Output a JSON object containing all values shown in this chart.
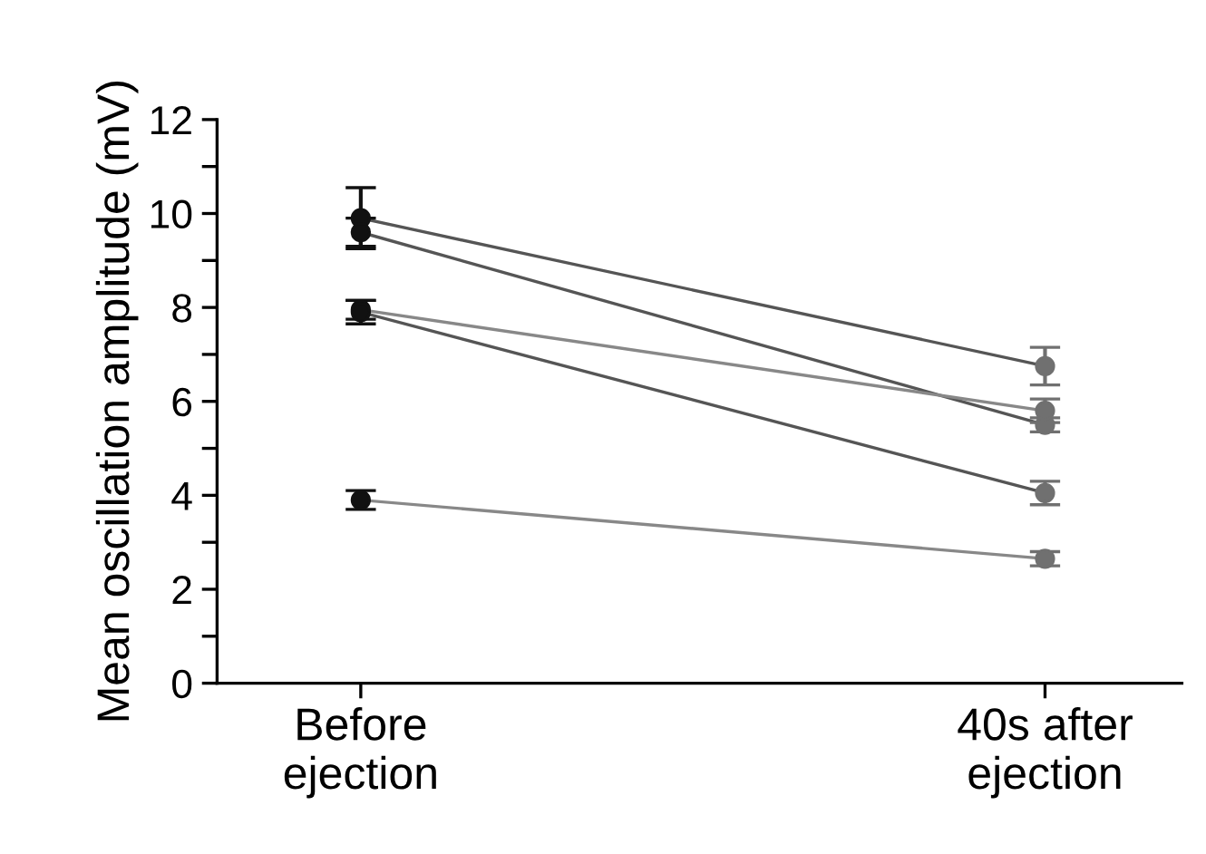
{
  "chart_data": {
    "type": "line",
    "ylabel": "Mean oscillation amplitude (mV)",
    "categories": [
      "Before\nejection",
      "40s after\nejection"
    ],
    "series": [
      {
        "color": "#555555",
        "colors": [
          "#111111",
          "#707070"
        ],
        "values": [
          9.9,
          6.75
        ],
        "errors": [
          0.65,
          0.4
        ]
      },
      {
        "color": "#555555",
        "colors": [
          "#111111",
          "#707070"
        ],
        "values": [
          9.6,
          5.5
        ],
        "errors": [
          0.3,
          0.15
        ]
      },
      {
        "color": "#888888",
        "colors": [
          "#111111",
          "#707070"
        ],
        "values": [
          7.95,
          5.8
        ],
        "errors": [
          0.2,
          0.25
        ]
      },
      {
        "color": "#555555",
        "colors": [
          "#111111",
          "#707070"
        ],
        "values": [
          7.9,
          4.05
        ],
        "errors": [
          0.25,
          0.25
        ]
      },
      {
        "color": "#888888",
        "colors": [
          "#111111",
          "#707070"
        ],
        "values": [
          3.9,
          2.65
        ],
        "errors": [
          0.2,
          0.15
        ]
      }
    ],
    "ylim": [
      0,
      12
    ],
    "yticks": [
      0,
      {
        "value": 1,
        "label": null
      },
      2,
      {
        "value": 3,
        "label": null
      },
      4,
      {
        "value": 5,
        "label": null
      },
      6,
      {
        "value": 7,
        "label": null
      },
      8,
      {
        "value": 9,
        "label": null
      },
      10,
      {
        "value": 11,
        "label": null
      },
      12
    ],
    "marker": "circle",
    "grid": false,
    "legend": false
  }
}
